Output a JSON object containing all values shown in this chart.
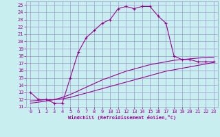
{
  "xlabel": "Windchill (Refroidissement éolien,°C)",
  "bg_color": "#c8eef0",
  "line_color": "#990099",
  "grid_color": "#9999cc",
  "axis_color": "#990099",
  "xlim": [
    -0.5,
    23.5
  ],
  "ylim": [
    11,
    25.5
  ],
  "xticks": [
    0,
    1,
    2,
    3,
    4,
    5,
    6,
    7,
    8,
    9,
    10,
    11,
    12,
    13,
    14,
    15,
    16,
    17,
    18,
    19,
    20,
    21,
    22,
    23
  ],
  "yticks": [
    11,
    12,
    13,
    14,
    15,
    16,
    17,
    18,
    19,
    20,
    21,
    22,
    23,
    24,
    25
  ],
  "line1_x": [
    0,
    1,
    2,
    3,
    4,
    5,
    6,
    7,
    8,
    9,
    10,
    11,
    12,
    13,
    14,
    15,
    16,
    17,
    18,
    19,
    20,
    21,
    22,
    23
  ],
  "line1_y": [
    13.0,
    12.0,
    12.0,
    11.5,
    11.5,
    15.0,
    18.5,
    20.5,
    21.5,
    22.5,
    23.0,
    24.5,
    24.8,
    24.5,
    24.8,
    24.8,
    23.5,
    22.5,
    18.0,
    17.5,
    17.5,
    17.2,
    17.2,
    17.2
  ],
  "line2_x": [
    0,
    2,
    3,
    4,
    5,
    6,
    7,
    8,
    9,
    10,
    11,
    12,
    13,
    14,
    15,
    16,
    17,
    18,
    19,
    20,
    21,
    22,
    23
  ],
  "line2_y": [
    11.8,
    12.0,
    12.0,
    12.3,
    12.7,
    13.2,
    13.7,
    14.2,
    14.7,
    15.1,
    15.5,
    15.9,
    16.2,
    16.5,
    16.8,
    17.0,
    17.2,
    17.4,
    17.5,
    17.6,
    17.7,
    17.8,
    17.8
  ],
  "line3_x": [
    0,
    2,
    3,
    4,
    5,
    6,
    7,
    8,
    9,
    10,
    11,
    12,
    13,
    14,
    15,
    16,
    17,
    18,
    19,
    20,
    21,
    22,
    23
  ],
  "line3_y": [
    11.5,
    11.8,
    12.0,
    12.1,
    12.3,
    12.6,
    12.9,
    13.2,
    13.5,
    13.8,
    14.1,
    14.4,
    14.7,
    15.0,
    15.3,
    15.6,
    15.9,
    16.1,
    16.3,
    16.5,
    16.7,
    16.9,
    17.1
  ]
}
